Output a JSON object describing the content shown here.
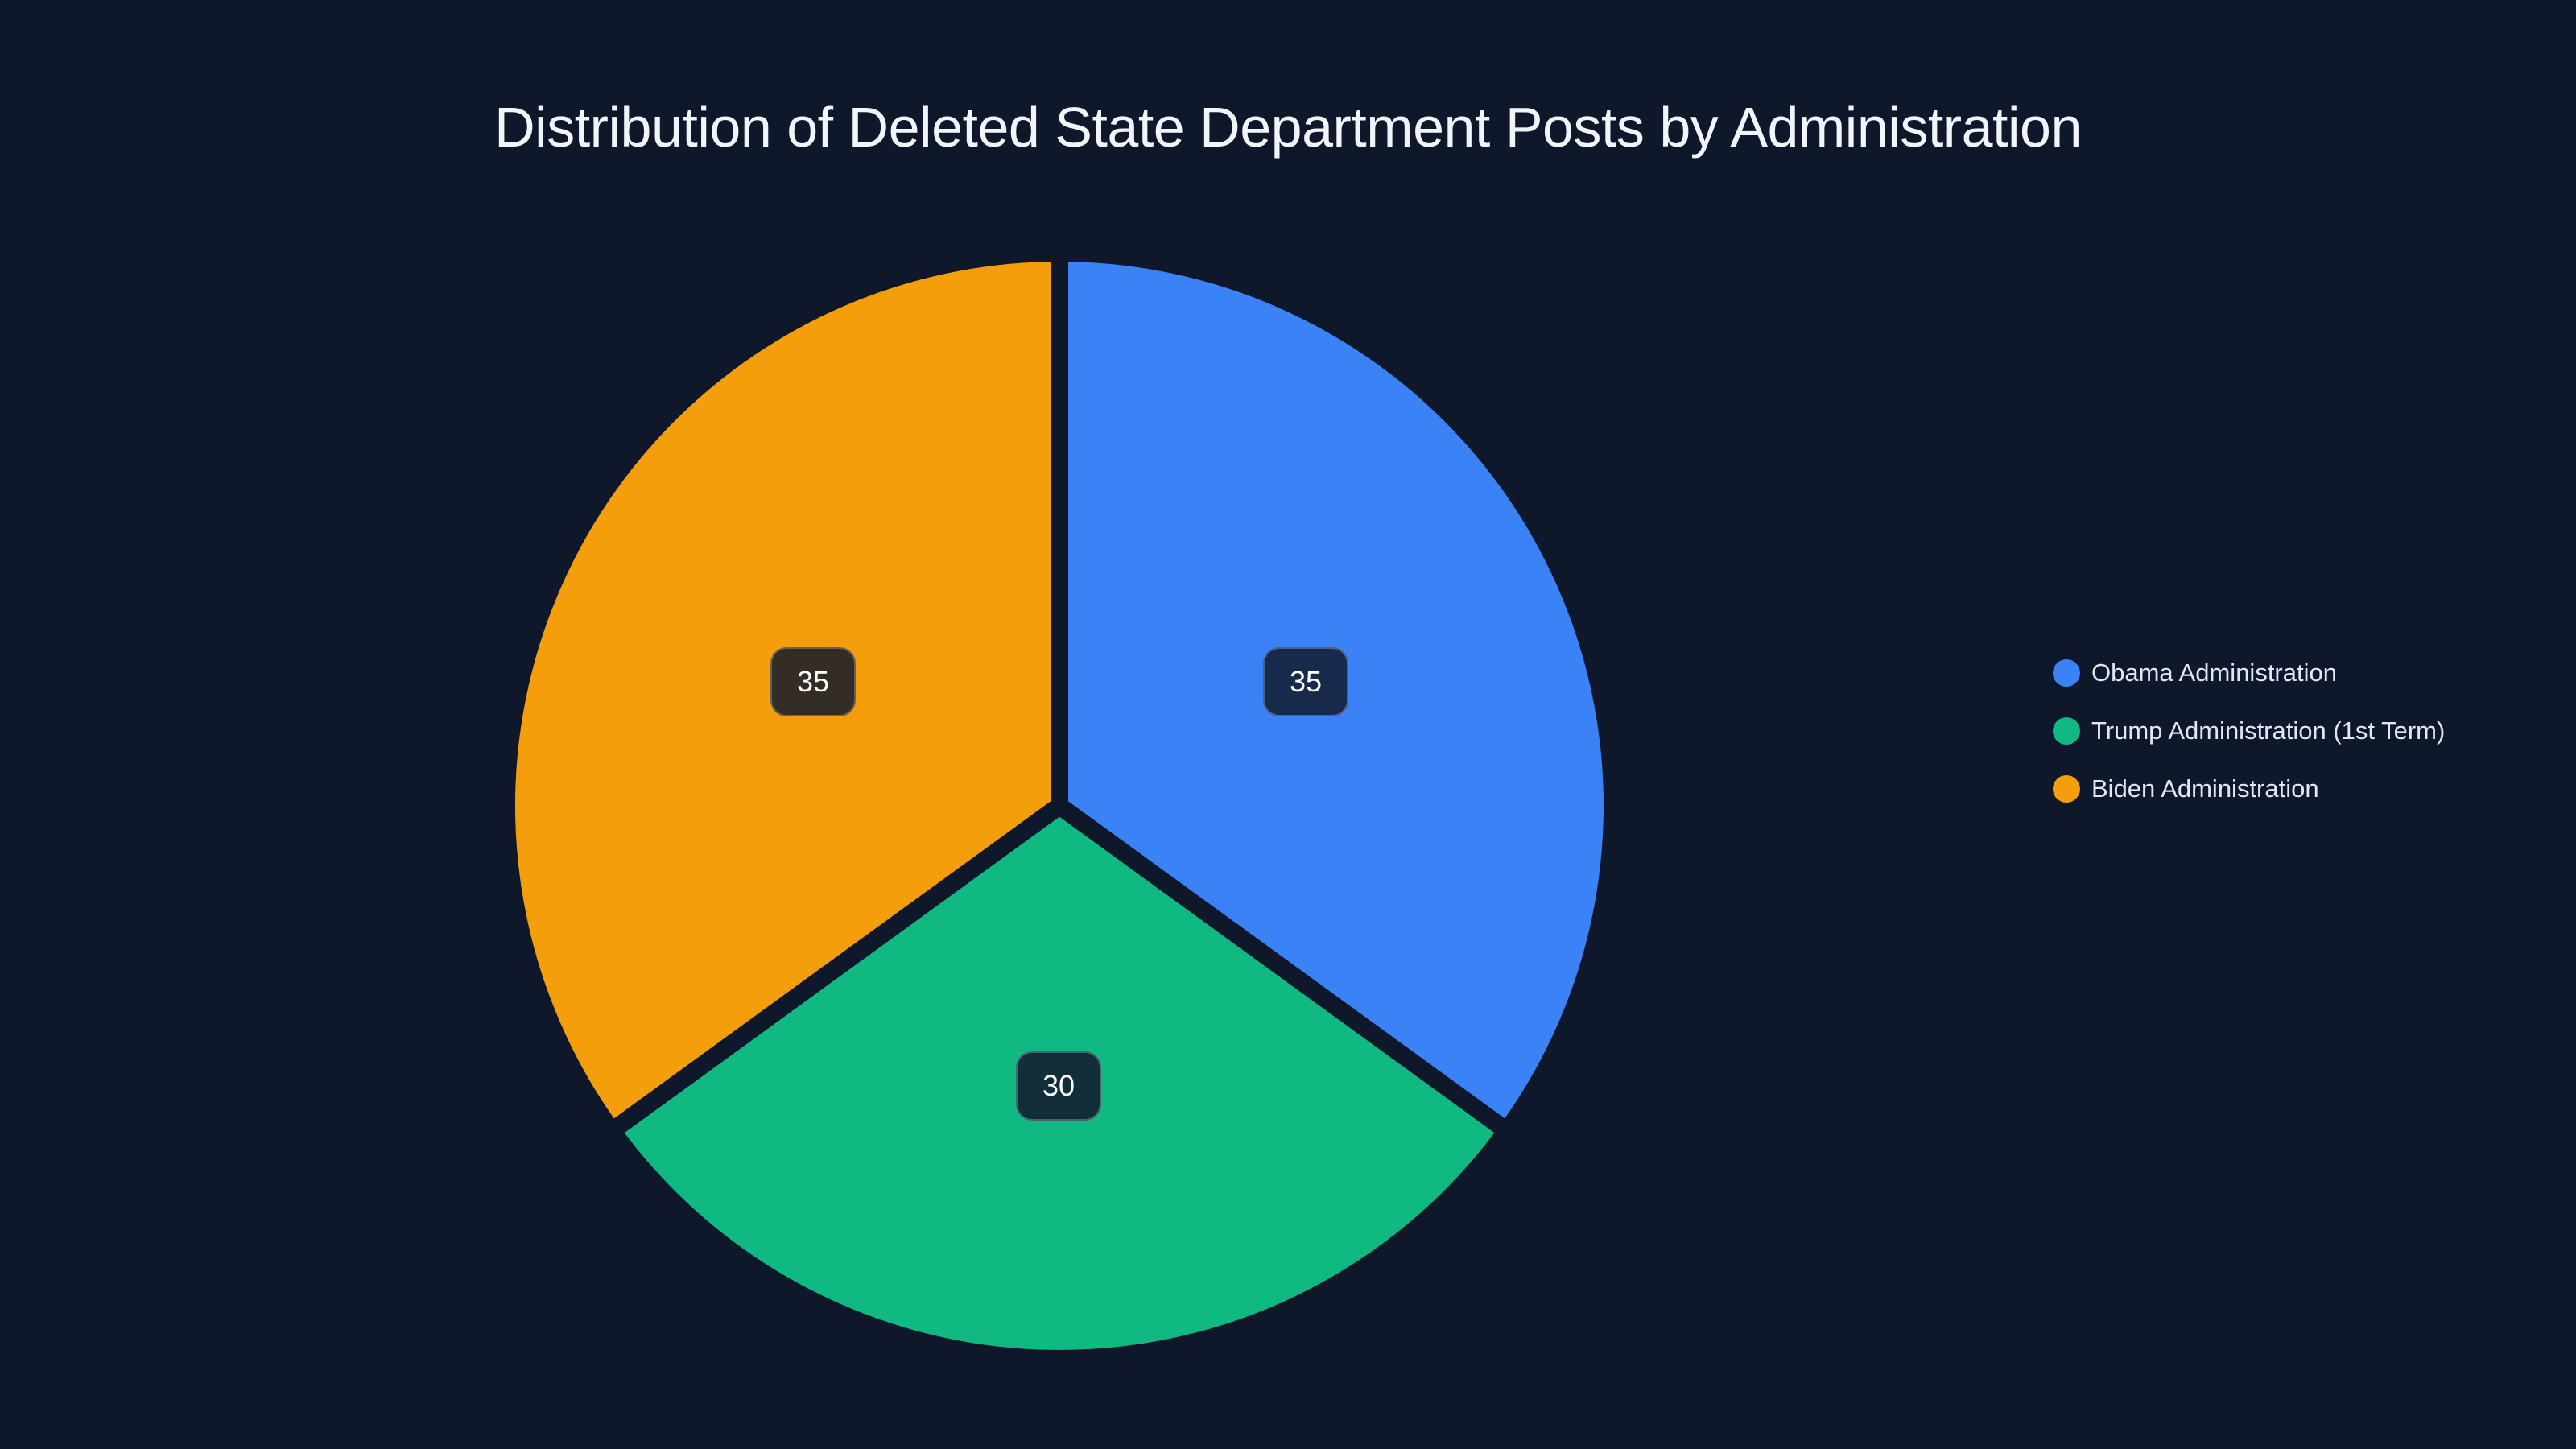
{
  "title": "Distribution of Deleted State Department Posts by Administration",
  "legend": {
    "items": [
      {
        "label": "Obama Administration",
        "color": "#3b82f6"
      },
      {
        "label": "Trump Administration (1st Term)",
        "color": "#10b981"
      },
      {
        "label": "Biden Administration",
        "color": "#f59e0b"
      }
    ]
  },
  "slice_labels": [
    {
      "value": "35",
      "bg": "#172a4b"
    },
    {
      "value": "30",
      "bg": "#122e38"
    },
    {
      "value": "35",
      "bg": "#332d26"
    }
  ],
  "background": "#0f172a",
  "chart_data": {
    "type": "pie",
    "title": "Distribution of Deleted State Department Posts by Administration",
    "categories": [
      "Obama Administration",
      "Trump Administration (1st Term)",
      "Biden Administration"
    ],
    "values": [
      35,
      30,
      35
    ],
    "colors": [
      "#3b82f6",
      "#10b981",
      "#f59e0b"
    ],
    "legend_position": "right",
    "data_labels": true
  }
}
